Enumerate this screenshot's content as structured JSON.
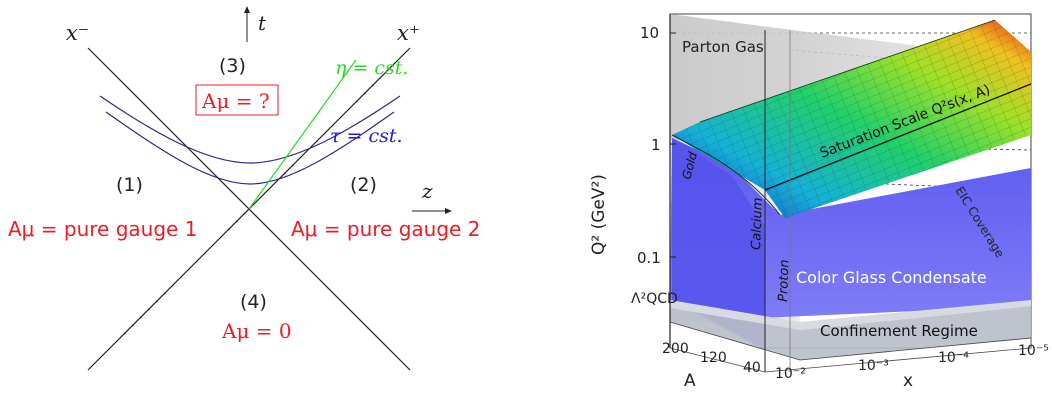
{
  "colors": {
    "red": "#ee1c24",
    "green": "#22dd22",
    "blue": "#1b1bd8",
    "hyperbola": "#2a2a8a",
    "cgc_blue": "#6a68f2",
    "parton_gray": "#c8c8c8",
    "confine_gray": "#b8bcc8"
  },
  "left": {
    "x_minus": "x⁻",
    "x_plus": "x⁺",
    "t_label": "t",
    "z_label": "z",
    "region3_num": "(3)",
    "region3_eq": "Aμ = ?",
    "region1_num": "(1)",
    "region1_eq": "Aμ = pure gauge 1",
    "region2_num": "(2)",
    "region2_eq": "Aμ = pure gauge 2",
    "region4_num": "(4)",
    "region4_eq": "Aμ = 0",
    "eta_label": "η = cst.",
    "tau_label": "τ = cst."
  },
  "right": {
    "y_axis_label": "Q² (GeV²)",
    "y_ticks": [
      "10",
      "1",
      "0.1",
      "Λ²QCD"
    ],
    "a_axis_label": "A",
    "a_ticks": [
      "200",
      "120",
      "40"
    ],
    "x_axis_label": "x",
    "x_ticks": [
      "10⁻²",
      "10⁻³",
      "10⁻⁴",
      "10⁻⁵"
    ],
    "parton_gas": "Parton Gas",
    "saturation": "Saturation Scale Q²s(x, A)",
    "cgc": "Color Glass Condensate",
    "confinement": "Confinement Regime",
    "eic": "EIC Coverage",
    "gold": "Gold",
    "calcium": "Calcium",
    "proton": "Proton"
  }
}
